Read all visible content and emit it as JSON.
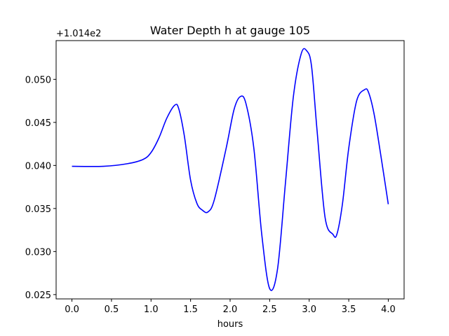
{
  "chart_data": {
    "type": "line",
    "title": "Water Depth h at gauge 105",
    "xlabel": "hours",
    "ylabel": "",
    "y_offset_label": "+1.014e2",
    "xlim": [
      -0.2,
      4.2
    ],
    "ylim": [
      0.0245,
      0.0545
    ],
    "xticks": [
      0.0,
      0.5,
      1.0,
      1.5,
      2.0,
      2.5,
      3.0,
      3.5,
      4.0
    ],
    "xtick_labels": [
      "0.0",
      "0.5",
      "1.0",
      "1.5",
      "2.0",
      "2.5",
      "3.0",
      "3.5",
      "4.0"
    ],
    "yticks": [
      0.025,
      0.03,
      0.035,
      0.04,
      0.045,
      0.05
    ],
    "ytick_labels": [
      "0.025",
      "0.030",
      "0.035",
      "0.040",
      "0.045",
      "0.050"
    ],
    "grid": false,
    "series": [
      {
        "color": "#0000ff",
        "x": [
          0.0,
          0.4,
          0.7,
          0.9,
          1.0,
          1.1,
          1.2,
          1.3,
          1.35,
          1.42,
          1.5,
          1.58,
          1.65,
          1.72,
          1.8,
          1.95,
          2.05,
          2.13,
          2.2,
          2.3,
          2.4,
          2.5,
          2.6,
          2.7,
          2.8,
          2.9,
          2.97,
          3.03,
          3.1,
          3.2,
          3.3,
          3.35,
          3.42,
          3.5,
          3.6,
          3.7,
          3.75,
          3.82,
          3.9,
          4.0
        ],
        "y": [
          0.0399,
          0.0399,
          0.0402,
          0.0407,
          0.0415,
          0.0432,
          0.0455,
          0.047,
          0.0466,
          0.0435,
          0.0383,
          0.0356,
          0.0348,
          0.0346,
          0.036,
          0.042,
          0.0465,
          0.048,
          0.0472,
          0.042,
          0.032,
          0.0257,
          0.028,
          0.038,
          0.048,
          0.053,
          0.0533,
          0.0515,
          0.044,
          0.034,
          0.032,
          0.032,
          0.0355,
          0.042,
          0.0475,
          0.0488,
          0.0485,
          0.046,
          0.0415,
          0.0355
        ]
      }
    ]
  }
}
